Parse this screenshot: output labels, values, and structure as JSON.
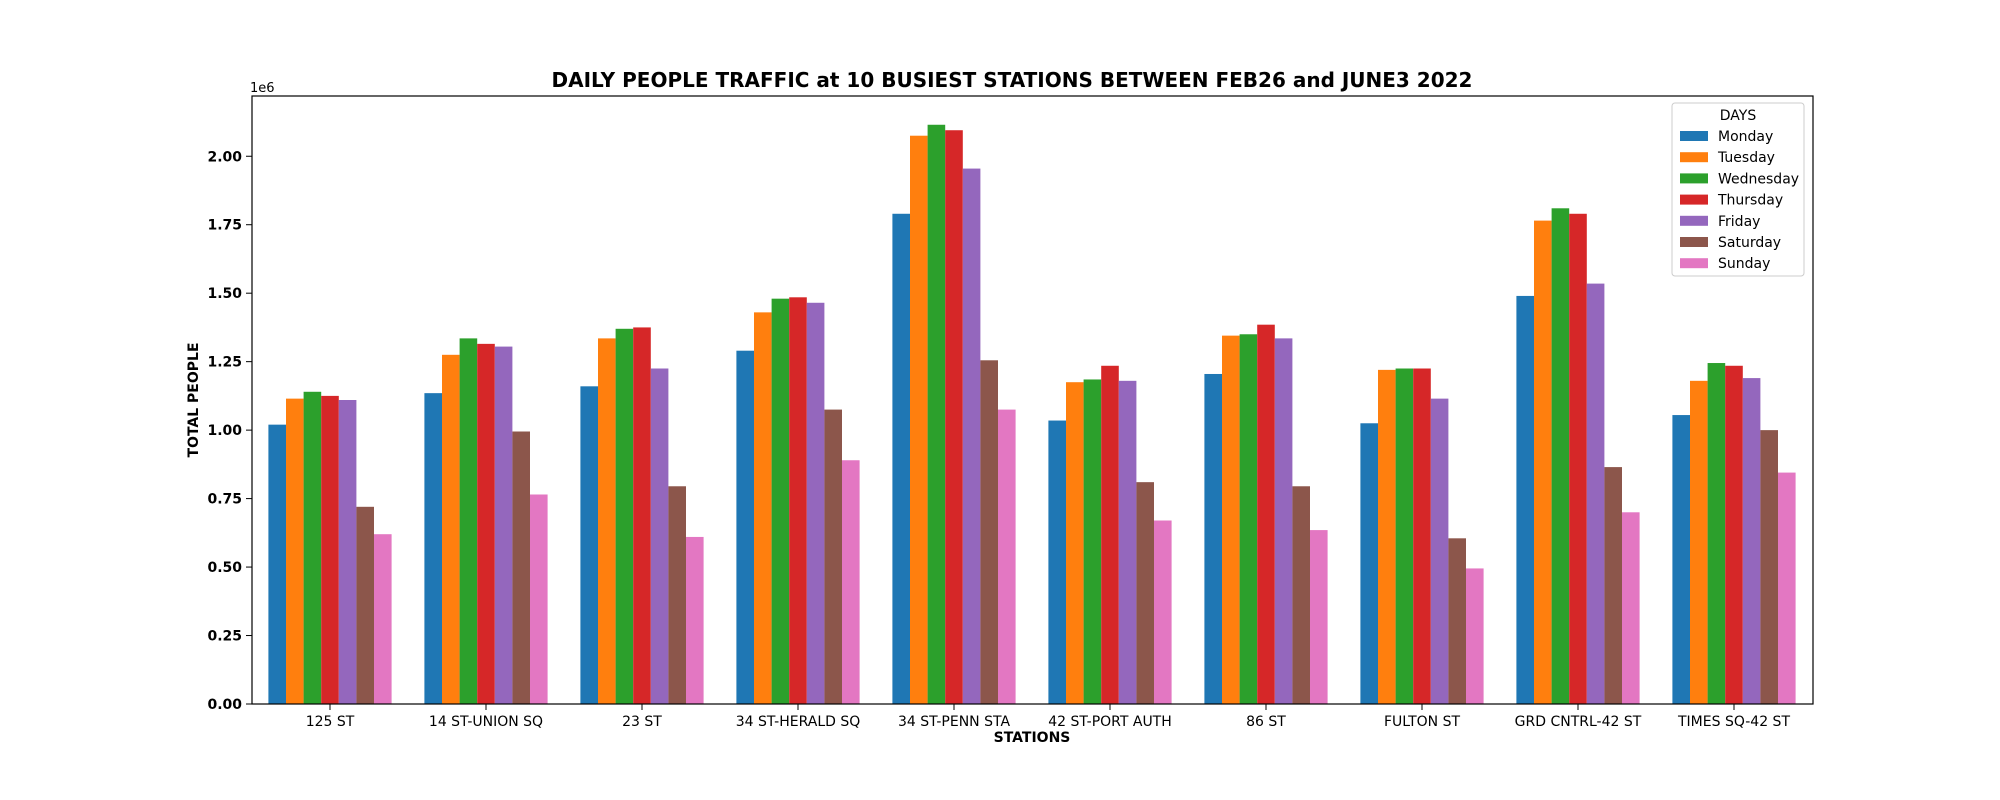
{
  "chart_data": {
    "type": "bar",
    "title": "DAILY PEOPLE TRAFFIC at 10 BUSIEST STATIONS BETWEEN FEB26 and JUNE3 2022",
    "xlabel": "STATIONS",
    "ylabel": "TOTAL PEOPLE",
    "y_offset_label": "1e6",
    "ylim": [
      0,
      2.22
    ],
    "yticks": [
      "0.00",
      "0.25",
      "0.50",
      "0.75",
      "1.00",
      "1.25",
      "1.50",
      "1.75",
      "2.00"
    ],
    "grid": false,
    "legend": {
      "title": "DAYS",
      "placement": "top-right"
    },
    "categories": [
      "125 ST",
      "14 ST-UNION SQ",
      "23 ST",
      "34 ST-HERALD SQ",
      "34 ST-PENN STA",
      "42 ST-PORT AUTH",
      "86 ST",
      "FULTON ST",
      "GRD CNTRL-42 ST",
      "TIMES SQ-42 ST"
    ],
    "series": [
      {
        "name": "Monday",
        "color": "#1f77b4",
        "values": [
          1.02,
          1.135,
          1.16,
          1.29,
          1.79,
          1.035,
          1.205,
          1.025,
          1.49,
          1.055
        ]
      },
      {
        "name": "Tuesday",
        "color": "#ff7f0e",
        "values": [
          1.115,
          1.275,
          1.335,
          1.43,
          2.075,
          1.175,
          1.345,
          1.22,
          1.765,
          1.18
        ]
      },
      {
        "name": "Wednesday",
        "color": "#2ca02c",
        "values": [
          1.14,
          1.335,
          1.37,
          1.48,
          2.115,
          1.185,
          1.35,
          1.225,
          1.81,
          1.245
        ]
      },
      {
        "name": "Thursday",
        "color": "#d62728",
        "values": [
          1.125,
          1.315,
          1.375,
          1.485,
          2.095,
          1.235,
          1.385,
          1.225,
          1.79,
          1.235
        ]
      },
      {
        "name": "Friday",
        "color": "#9467bd",
        "values": [
          1.11,
          1.305,
          1.225,
          1.465,
          1.955,
          1.18,
          1.335,
          1.115,
          1.535,
          1.19
        ]
      },
      {
        "name": "Saturday",
        "color": "#8c564b",
        "values": [
          0.72,
          0.995,
          0.795,
          1.075,
          1.255,
          0.81,
          0.795,
          0.605,
          0.865,
          1.0
        ]
      },
      {
        "name": "Sunday",
        "color": "#e377c2",
        "values": [
          0.62,
          0.765,
          0.61,
          0.89,
          1.075,
          0.67,
          0.635,
          0.495,
          0.7,
          0.845
        ]
      }
    ]
  }
}
